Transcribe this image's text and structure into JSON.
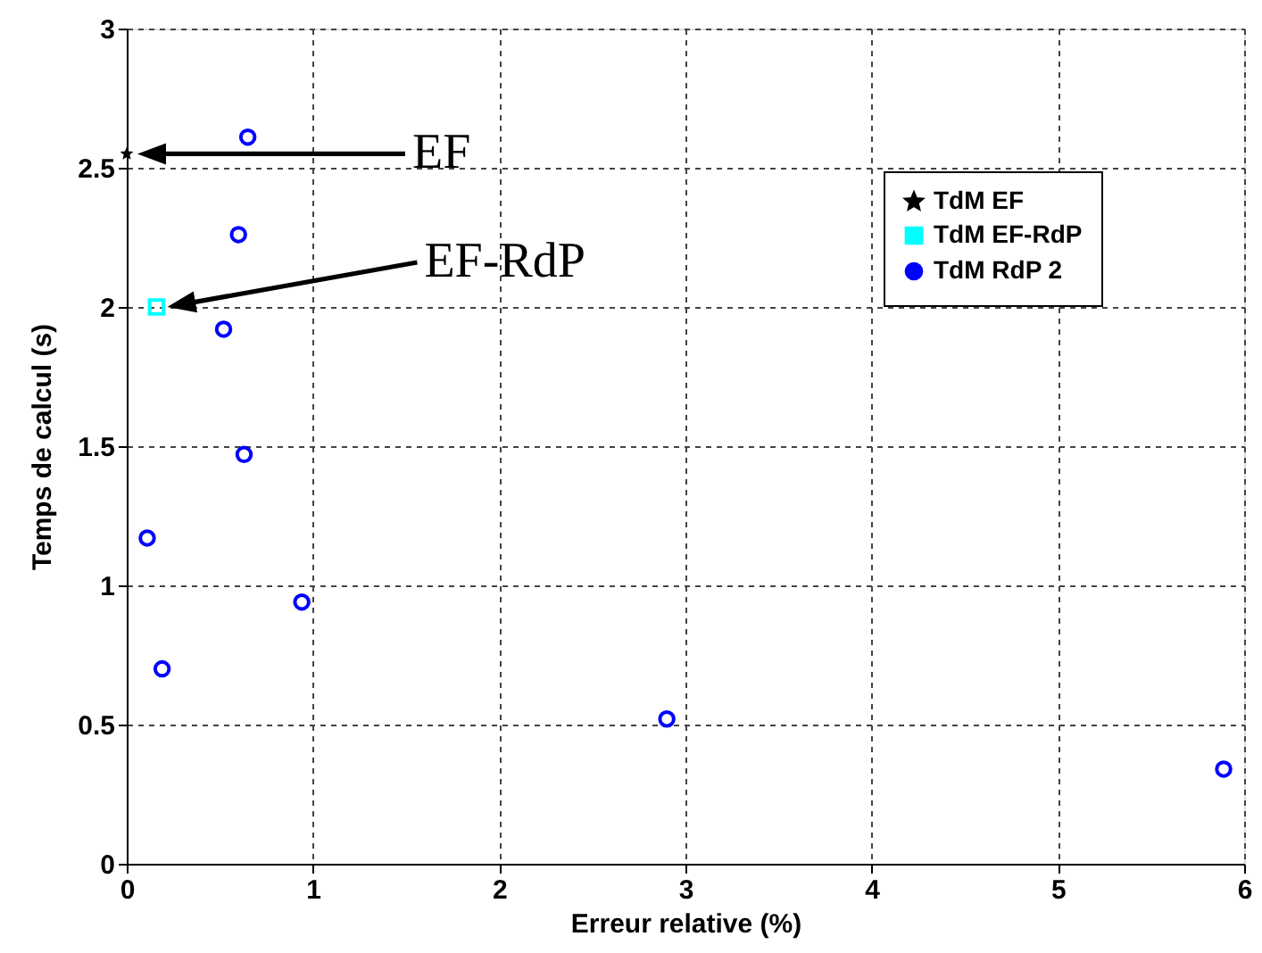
{
  "chart_data": {
    "type": "scatter",
    "xlabel": "Erreur relative (%)",
    "ylabel": "Temps de calcul (s)",
    "xlim": [
      0,
      6
    ],
    "xticks": [
      0,
      1,
      2,
      3,
      4,
      5,
      6
    ],
    "ylim": [
      0,
      3
    ],
    "yticks": [
      0,
      0.5,
      1,
      1.5,
      2,
      2.5,
      3
    ],
    "grid": true,
    "legend": "top right",
    "series": [
      {
        "name": "TdM EF",
        "color": "#000000",
        "marker": "star",
        "x": [
          0.0
        ],
        "values": [
          2.55
        ]
      },
      {
        "name": "TdM EF-RdP",
        "color": "#00ffff",
        "marker": "square",
        "x": [
          0.16
        ],
        "values": [
          2.0
        ]
      },
      {
        "name": "TdM RdP 2",
        "color": "#0000ff",
        "marker": "circle",
        "x": [
          0.65,
          0.6,
          0.52,
          0.63,
          0.11,
          0.19,
          0.94,
          2.9,
          5.89
        ],
        "values": [
          2.61,
          2.26,
          1.92,
          1.47,
          1.17,
          0.7,
          0.94,
          0.52,
          0.34
        ]
      }
    ],
    "annotations": [
      "EF",
      "EF-RdP"
    ]
  }
}
